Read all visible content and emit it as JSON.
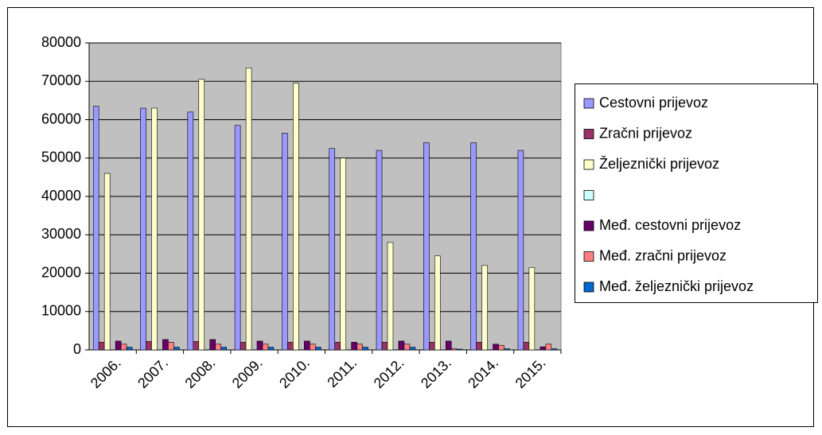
{
  "chart_data": {
    "type": "bar",
    "categories": [
      "2006.",
      "2007.",
      "2008.",
      "2009.",
      "2010.",
      "2011.",
      "2012.",
      "2013.",
      "2014.",
      "2015."
    ],
    "series": [
      {
        "name": "Cestovni prijevoz",
        "color": "#9999ff",
        "values": [
          63500,
          63000,
          62000,
          58500,
          56500,
          52500,
          52000,
          54000,
          54000,
          52000
        ]
      },
      {
        "name": "Zračni prijevoz",
        "color": "#993366",
        "values": [
          2000,
          2200,
          2200,
          2000,
          2000,
          2000,
          2000,
          2000,
          2000,
          2000
        ]
      },
      {
        "name": "Željeznički prijevoz",
        "color": "#ffffcc",
        "values": [
          46000,
          63000,
          70500,
          73500,
          69500,
          50000,
          28000,
          24500,
          22000,
          21500
        ]
      },
      {
        "color": "#ccffff",
        "values": [
          0,
          0,
          0,
          0,
          0,
          0,
          0,
          0,
          0,
          0
        ]
      },
      {
        "name": "Međ. cestovni prijevoz",
        "color": "#660066",
        "values": [
          2300,
          2700,
          2700,
          2300,
          2300,
          2000,
          2300,
          2300,
          1500,
          800
        ]
      },
      {
        "name": "Međ. zračni prijevoz",
        "color": "#ff8080",
        "values": [
          1500,
          2000,
          1500,
          1500,
          1500,
          1500,
          1500,
          300,
          1200,
          1500
        ]
      },
      {
        "name": "Međ. željeznički prijevoz",
        "color": "#0066cc",
        "values": [
          700,
          700,
          700,
          700,
          700,
          700,
          700,
          200,
          300,
          300
        ]
      }
    ],
    "ylim": [
      0,
      80000
    ],
    "yticks": [
      0,
      10000,
      20000,
      30000,
      40000,
      50000,
      60000,
      70000,
      80000
    ],
    "grid": true,
    "legend": "right"
  }
}
